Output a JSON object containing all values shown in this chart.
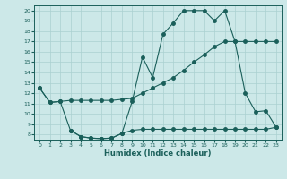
{
  "xlabel": "Humidex (Indice chaleur)",
  "xlim": [
    -0.5,
    23.5
  ],
  "ylim": [
    7.5,
    20.5
  ],
  "yticks": [
    8,
    9,
    10,
    11,
    12,
    13,
    14,
    15,
    16,
    17,
    18,
    19,
    20
  ],
  "xticks": [
    0,
    1,
    2,
    3,
    4,
    5,
    6,
    7,
    8,
    9,
    10,
    11,
    12,
    13,
    14,
    15,
    16,
    17,
    18,
    19,
    20,
    21,
    22,
    23
  ],
  "bg_color": "#cce8e8",
  "grid_color": "#aad0d0",
  "line_color": "#1a5f5a",
  "line1_x": [
    0,
    1,
    2,
    3,
    4,
    5,
    6,
    7,
    8,
    9,
    10,
    11,
    12,
    13,
    14,
    15,
    16,
    17,
    18,
    19,
    20,
    21,
    22,
    23
  ],
  "line1_y": [
    12.5,
    11.1,
    11.2,
    11.3,
    11.3,
    11.3,
    11.3,
    11.3,
    11.4,
    11.5,
    12.0,
    12.5,
    13.0,
    13.5,
    14.2,
    15.0,
    15.7,
    16.5,
    17.0,
    17.0,
    17.0,
    17.0,
    17.0,
    17.0
  ],
  "line2_x": [
    0,
    1,
    2,
    3,
    4,
    5,
    6,
    7,
    8,
    9,
    10,
    11,
    12,
    13,
    14,
    15,
    16,
    17,
    18,
    19,
    20,
    21,
    22,
    23
  ],
  "line2_y": [
    12.5,
    11.1,
    11.2,
    8.4,
    7.8,
    7.65,
    7.6,
    7.65,
    8.1,
    11.2,
    15.5,
    13.5,
    17.7,
    18.8,
    20.0,
    20.0,
    20.0,
    19.0,
    20.0,
    17.0,
    12.0,
    10.2,
    10.3,
    8.7
  ],
  "line3_x": [
    3,
    4,
    5,
    6,
    7,
    8,
    9,
    10,
    11,
    12,
    13,
    14,
    15,
    16,
    17,
    18,
    19,
    20,
    21,
    22,
    23
  ],
  "line3_y": [
    8.4,
    7.8,
    7.65,
    7.6,
    7.65,
    8.1,
    8.4,
    8.5,
    8.5,
    8.5,
    8.5,
    8.5,
    8.5,
    8.5,
    8.5,
    8.5,
    8.5,
    8.5,
    8.5,
    8.5,
    8.7
  ],
  "marker_size": 2.5
}
